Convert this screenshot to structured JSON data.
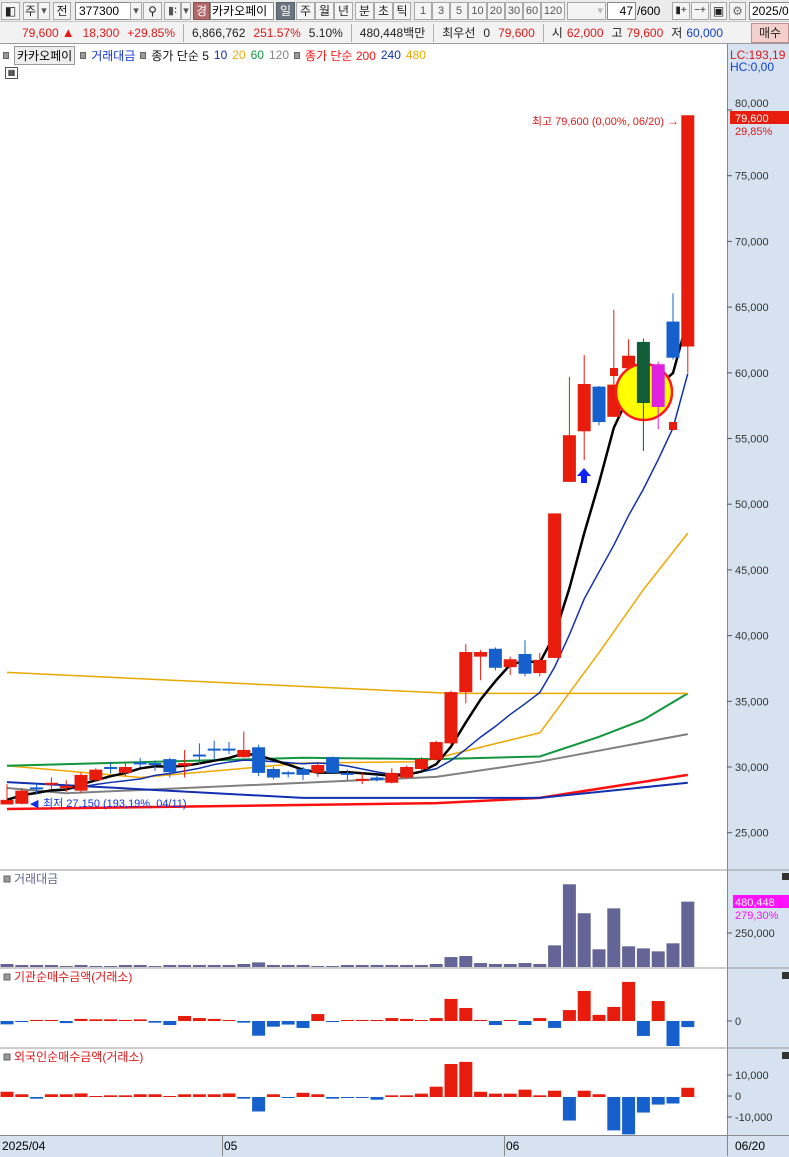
{
  "toolbar": {
    "market_select": "주",
    "prev_label": "전",
    "code": "377300",
    "exchange_badge": "경",
    "stock_name": "카카오페이",
    "periods": [
      "일",
      "주",
      "월",
      "년",
      "분",
      "초",
      "틱"
    ],
    "selected_period": "일",
    "intervals": [
      "1",
      "3",
      "5",
      "10",
      "20",
      "30",
      "60",
      "120"
    ],
    "count_value": "47",
    "count_total": "/600",
    "date": "2025/0"
  },
  "quote": {
    "price": "79,600",
    "change": "18,300",
    "change_pct": "+29.85%",
    "volume": "6,866,762",
    "volume_ratio": "251.57%",
    "turnover_pct": "5.10%",
    "amount": "480,448백만",
    "best_label": "최우선",
    "best_qty": "0",
    "best_price": "79,600",
    "open_label": "시",
    "open": "62,000",
    "high_label": "고",
    "high": "79,600",
    "low_label": "저",
    "low": "60,000",
    "buy_button": "매수"
  },
  "legend": {
    "stock": "카카오페이",
    "volume_amount": "거래대금",
    "ma_short_label": "종가 단순 5",
    "ma10": "10",
    "ma20": "20",
    "ma60": "60",
    "ma120": "120",
    "ma_long_label": "종가 단순 200",
    "ma240": "240",
    "ma480": "480"
  },
  "colors": {
    "up": "#e81c0c",
    "down": "#1560cc",
    "ma5": "#000000",
    "ma10": "#1030b0",
    "ma20": "#f0a800",
    "ma60": "#10963c",
    "ma120": "#808080",
    "ma200": "#ff1010",
    "ma240": "#1030b0",
    "ma480": "#e8a800",
    "volume": "#646496",
    "highlight": "#ffff00"
  },
  "price_axis": {
    "lc": "LC:193,19",
    "hc": "HC:0,00",
    "ticks": [
      "80,000",
      "75,000",
      "70,000",
      "65,000",
      "60,000",
      "55,000",
      "50,000",
      "45,000",
      "40,000",
      "35,000",
      "30,000",
      "25,000"
    ],
    "current_tag": "79,600",
    "current_pct": "29,85%"
  },
  "annotations": {
    "high": "최고 79,600 (0,00%, 06/20)",
    "low": "최저 27,150 (193,19%, 04/11)"
  },
  "panels": {
    "volume_title": "거래대금",
    "volume_tag": "480,448",
    "volume_pct": "279,30%",
    "volume_tick": "250,000",
    "inst_title": "기관순매수금액(거래소)",
    "inst_tick": "0",
    "foreign_title": "외국인순매수금액(거래소)",
    "foreign_ticks": [
      "10,000",
      "0",
      "-10,000"
    ]
  },
  "date_axis": {
    "labels": [
      "2025/04",
      "05",
      "06"
    ],
    "last": "06/20"
  },
  "chart_data": {
    "type": "candlestick",
    "ylim": [
      25000,
      80000
    ],
    "candles_ohlc": [
      [
        27150,
        28700,
        27150,
        27500
      ],
      [
        27200,
        28400,
        27150,
        28200
      ],
      [
        28450,
        28800,
        27900,
        28400
      ],
      [
        28750,
        29200,
        28300,
        28800
      ],
      [
        28450,
        29000,
        28100,
        28550
      ],
      [
        28200,
        29600,
        28000,
        29400
      ],
      [
        29000,
        29900,
        28900,
        29800
      ],
      [
        30000,
        30400,
        29500,
        29950
      ],
      [
        29550,
        30400,
        29300,
        30000
      ],
      [
        30350,
        30700,
        30000,
        30300
      ],
      [
        30300,
        30500,
        29700,
        30250
      ],
      [
        30600,
        30700,
        29200,
        29600
      ],
      [
        30100,
        31300,
        29200,
        30300
      ],
      [
        30950,
        31800,
        30200,
        30900
      ],
      [
        31400,
        32000,
        30500,
        31350
      ],
      [
        31400,
        31900,
        31000,
        31300
      ],
      [
        30750,
        32700,
        30700,
        31300
      ],
      [
        31500,
        31700,
        29300,
        29550
      ],
      [
        29850,
        30000,
        29050,
        29200
      ],
      [
        29600,
        29700,
        29200,
        29550
      ],
      [
        29850,
        30000,
        29000,
        29400
      ],
      [
        29550,
        30300,
        29250,
        30150
      ],
      [
        30750,
        30800,
        29500,
        29550
      ],
      [
        29550,
        29800,
        29000,
        29400
      ],
      [
        29050,
        29600,
        28700,
        29100
      ],
      [
        29200,
        29400,
        28900,
        29000
      ],
      [
        28800,
        29900,
        28750,
        29550
      ],
      [
        29200,
        30100,
        29100,
        30000
      ],
      [
        29850,
        30750,
        29700,
        30600
      ],
      [
        30550,
        32000,
        30500,
        31900
      ],
      [
        31800,
        35800,
        31700,
        35700
      ],
      [
        35700,
        39350,
        34850,
        38750
      ],
      [
        38400,
        38900,
        36600,
        38750
      ],
      [
        39000,
        39100,
        37350,
        37550
      ],
      [
        37600,
        38400,
        37000,
        38200
      ],
      [
        38600,
        39650,
        36900,
        37100
      ],
      [
        37150,
        38700,
        36900,
        38150
      ],
      [
        38300,
        49300,
        38300,
        49300
      ],
      [
        51700,
        59700,
        51700,
        55250
      ],
      [
        55550,
        61350,
        53350,
        59150
      ],
      [
        58950,
        59000,
        56000,
        56250
      ],
      [
        56650,
        64800,
        56650,
        59100
      ],
      [
        60350,
        62550,
        60350,
        61300
      ],
      [
        62350,
        62600,
        54050,
        57700
      ],
      [
        57400,
        60850,
        55700,
        60650
      ],
      [
        63900,
        66050,
        61000,
        61150
      ],
      [
        62000,
        79600,
        60000,
        79600
      ]
    ],
    "moving_averages": [
      {
        "name": "20",
        "points": [
          [
            0,
            30100
          ],
          [
            9,
            29200
          ],
          [
            20,
            30300
          ],
          [
            28,
            30400
          ],
          [
            36,
            32600
          ],
          [
            40,
            38700
          ],
          [
            43,
            43500
          ],
          [
            46,
            47800
          ]
        ]
      },
      {
        "name": "60",
        "points": [
          [
            0,
            30100
          ],
          [
            20,
            30700
          ],
          [
            29,
            30600
          ],
          [
            36,
            30800
          ],
          [
            40,
            32300
          ],
          [
            43,
            33600
          ],
          [
            46,
            35600
          ]
        ]
      },
      {
        "name": "120",
        "points": [
          [
            0,
            28400
          ],
          [
            4,
            28000
          ],
          [
            29,
            29250
          ],
          [
            36,
            30400
          ],
          [
            46,
            32500
          ]
        ]
      },
      {
        "name": "200",
        "points": [
          [
            0,
            26800
          ],
          [
            29,
            27250
          ],
          [
            36,
            27650
          ],
          [
            46,
            29400
          ]
        ]
      },
      {
        "name": "240",
        "points": [
          [
            0,
            28850
          ],
          [
            20,
            27650
          ],
          [
            36,
            27650
          ],
          [
            46,
            28800
          ]
        ]
      },
      {
        "name": "480",
        "points": [
          [
            0,
            37200
          ],
          [
            30,
            35600
          ],
          [
            46,
            35600
          ]
        ]
      }
    ],
    "volume_amount": [
      22000,
      15000,
      15000,
      15000,
      7000,
      15000,
      7000,
      7000,
      15000,
      15000,
      7000,
      15000,
      15000,
      15000,
      15000,
      15000,
      22000,
      34000,
      15000,
      15000,
      15000,
      7000,
      7000,
      15000,
      15000,
      15000,
      15000,
      15000,
      15000,
      22000,
      73000,
      81000,
      29000,
      22000,
      22000,
      29000,
      22000,
      159000,
      608000,
      395000,
      130000,
      431000,
      152000,
      137000,
      115000,
      174000,
      480448
    ],
    "institutional_net": [
      -1600,
      -500,
      500,
      500,
      -1000,
      1000,
      800,
      800,
      500,
      800,
      -800,
      -1900,
      2400,
      1400,
      1000,
      300,
      -800,
      -7000,
      -2700,
      -1700,
      -3300,
      3300,
      -300,
      300,
      500,
      300,
      1400,
      1000,
      300,
      1400,
      10500,
      6200,
      500,
      -1900,
      300,
      -1900,
      1400,
      -3300,
      5200,
      14300,
      2900,
      6700,
      18600,
      -7100,
      9500,
      -11900,
      -2900
    ],
    "foreign_net": [
      2500,
      1300,
      -800,
      1300,
      1300,
      1700,
      300,
      800,
      800,
      1300,
      1300,
      300,
      1300,
      1300,
      1300,
      1700,
      -800,
      -6900,
      1300,
      -300,
      2000,
      1300,
      -800,
      -300,
      -300,
      -1300,
      800,
      800,
      1600,
      4900,
      15700,
      16700,
      2500,
      1600,
      1600,
      3500,
      800,
      3000,
      -11200,
      3000,
      1300,
      -15900,
      -17800,
      -7400,
      -3600,
      -3100,
      4400
    ]
  }
}
